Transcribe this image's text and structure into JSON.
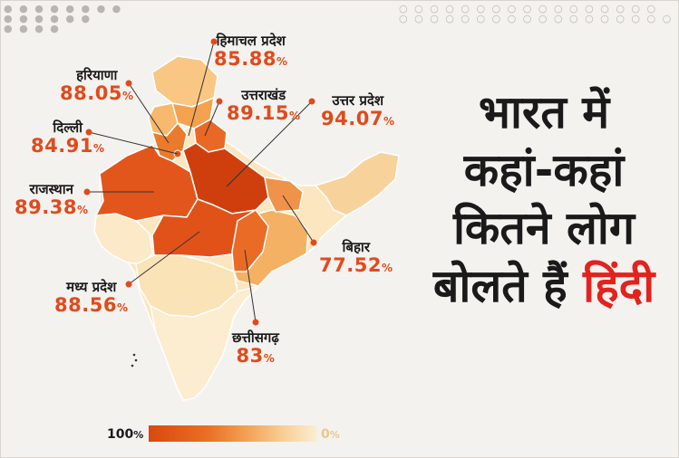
{
  "states": [
    {
      "id": "himachal",
      "name": "हिमाचल प्रदेश",
      "value": "85.88",
      "unit": "%"
    },
    {
      "id": "haryana",
      "name": "हरियाणा",
      "value": "88.05",
      "unit": "%"
    },
    {
      "id": "uttarakhand",
      "name": "उत्तराखंड",
      "value": "89.15",
      "unit": "%"
    },
    {
      "id": "uttar_pradesh",
      "name": "उत्तर प्रदेश",
      "value": "94.07",
      "unit": "%"
    },
    {
      "id": "delhi",
      "name": "दिल्ली",
      "value": "84.91",
      "unit": "%"
    },
    {
      "id": "rajasthan",
      "name": "राजस्थान",
      "value": "89.38",
      "unit": "%"
    },
    {
      "id": "bihar",
      "name": "बिहार",
      "value": "77.52",
      "unit": "%"
    },
    {
      "id": "madhya_pradesh",
      "name": "मध्य प्रदेश",
      "value": "88.56",
      "unit": "%"
    },
    {
      "id": "chhattisgarh",
      "name": "छत्तीसगढ़",
      "value": "83",
      "unit": "%"
    }
  ],
  "headline": {
    "line1": "भारत में",
    "line2": "कहां-कहां",
    "line3": "कितने लोग",
    "line4a": "बोलते हैं",
    "line4b": "हिंदी"
  },
  "legend": {
    "high_label": "100",
    "low_label": "0",
    "unit": "%"
  },
  "colors": {
    "accent": "#e14a1c",
    "headline_highlight": "#e3221e",
    "scale": [
      "#d9480f",
      "#e8651f",
      "#f08a3a",
      "#f4a95c",
      "#f7c98a",
      "#f9e3bb",
      "#fbeecf"
    ]
  }
}
